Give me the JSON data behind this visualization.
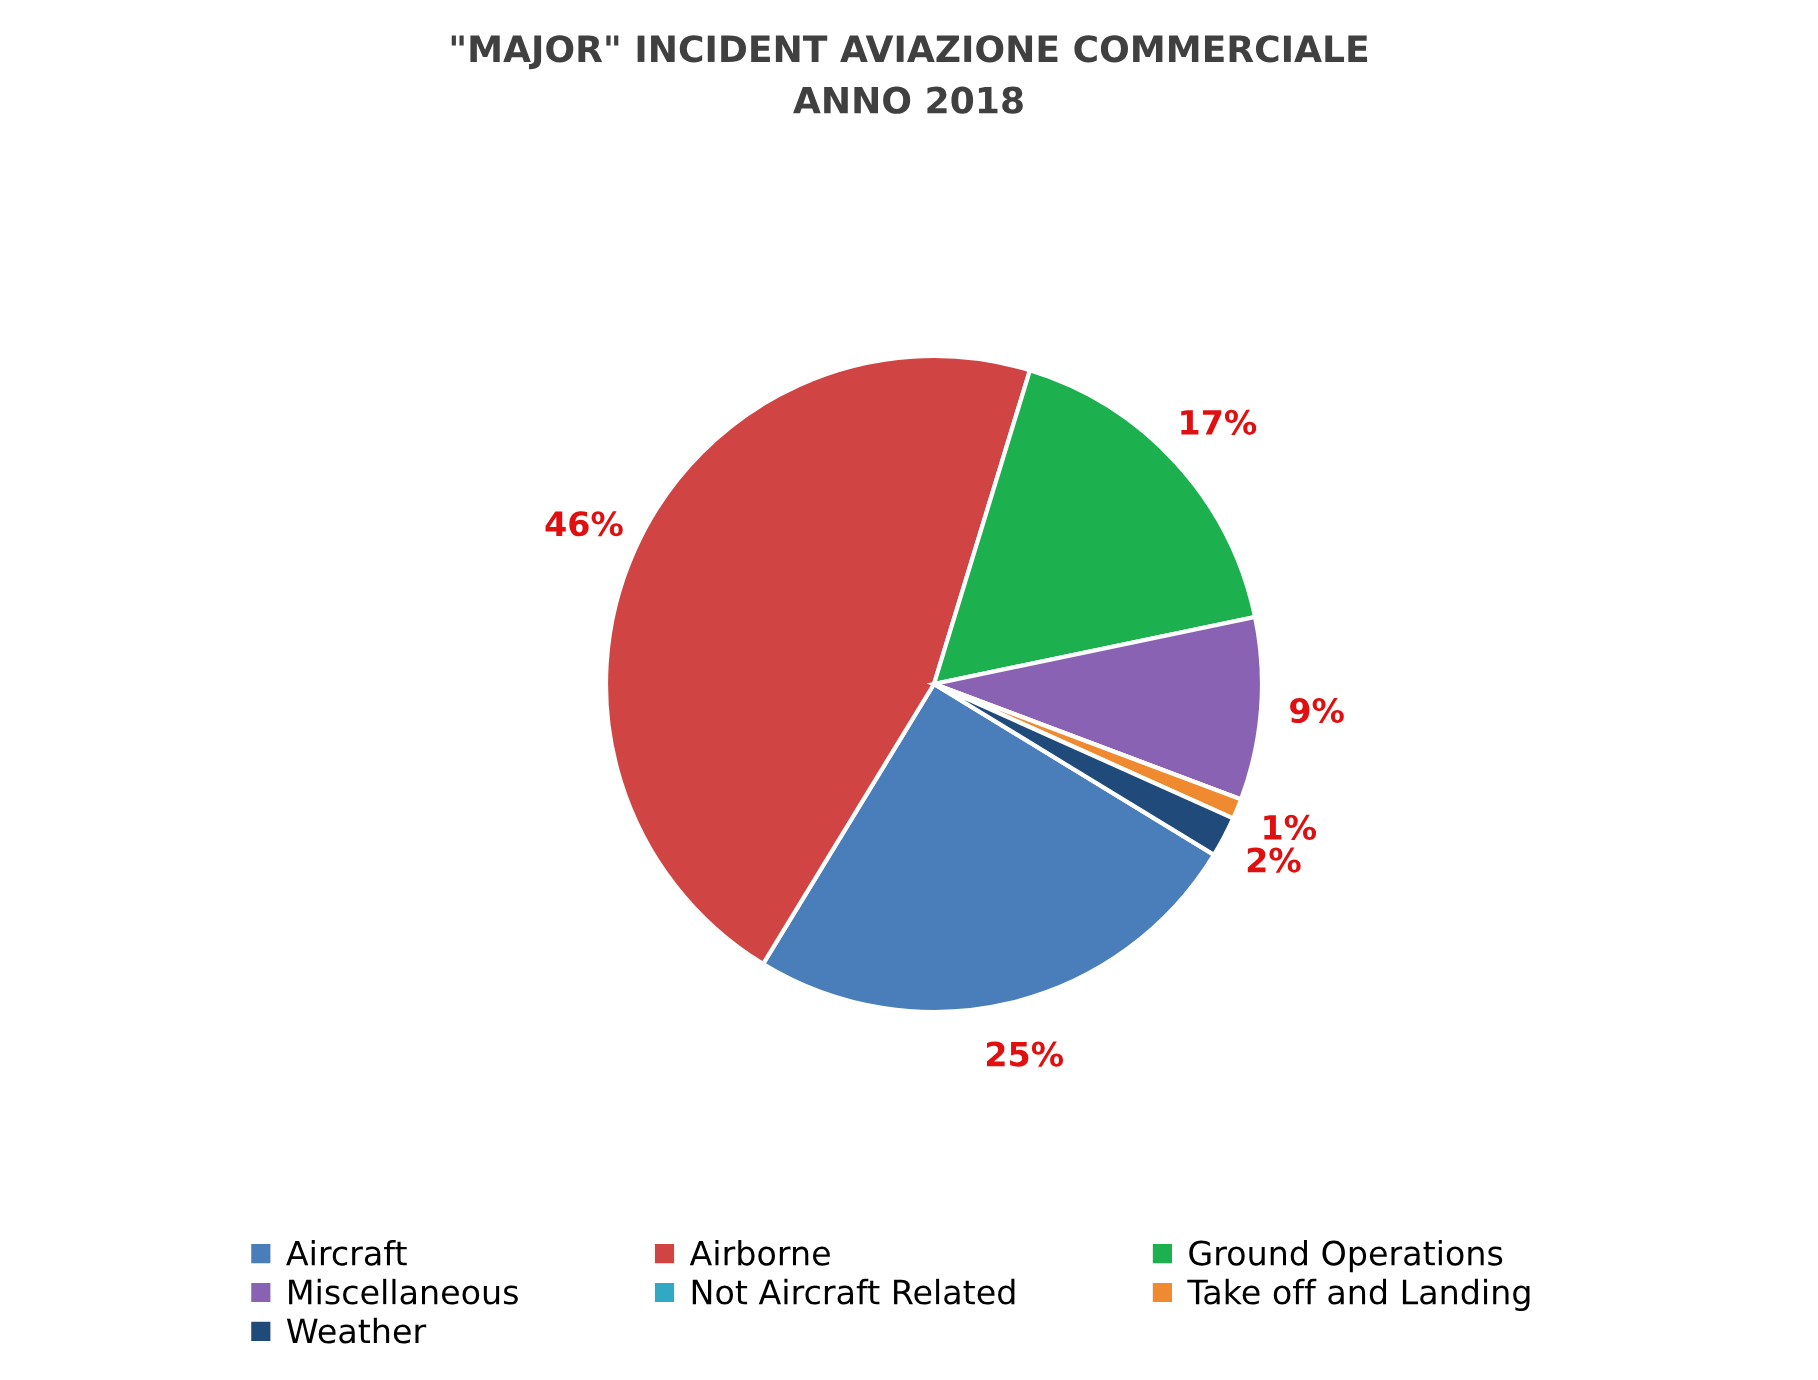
{
  "chart_data": {
    "type": "pie",
    "title": "\"MAJOR\" INCIDENT AVIAZIONE COMMERCIALE\nANNO 2018",
    "categories": [
      "Aircraft",
      "Airborne",
      "Ground Operations",
      "Miscellaneous",
      "Not Aircraft Related",
      "Take off and Landing",
      "Weather"
    ],
    "values": [
      25,
      46,
      17,
      9,
      0,
      1,
      2
    ],
    "colors": [
      "#4a7ebb",
      "#d04543",
      "#1cb04f",
      "#8a62b4",
      "#31a9c4",
      "#f08a30",
      "#1f4a7a"
    ],
    "value_labels": [
      "25%",
      "46%",
      "17%",
      "9%",
      null,
      "1%",
      "2%"
    ],
    "legend": "bottom"
  }
}
